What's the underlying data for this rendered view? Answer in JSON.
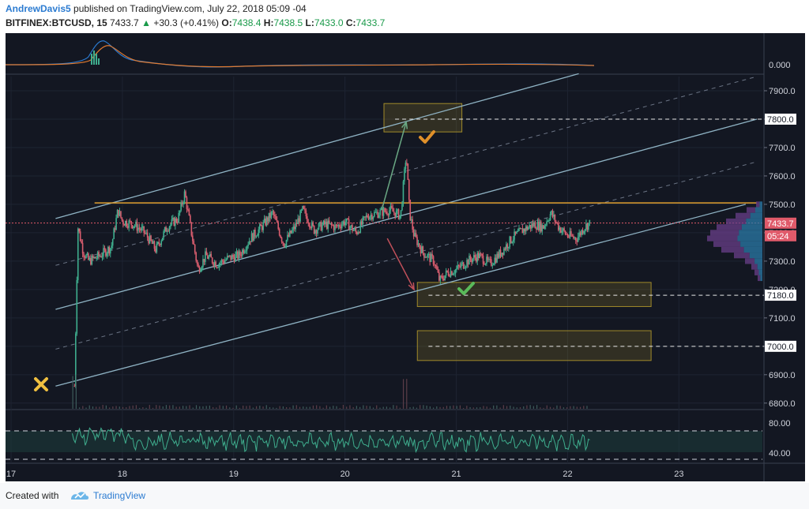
{
  "header": {
    "author": "AndrewDavis5",
    "published": " published on TradingView.com, July 22, 2018 05:09 -04",
    "symbol": "BITFINEX:BTCUSD, 15",
    "last": "7433.7",
    "up_arrow": "▲",
    "change": "+30.3 (+0.41%)",
    "o_label": "O:",
    "o_value": "7438.4",
    "h_label": "H:",
    "h_value": "7438.5",
    "l_label": "L:",
    "l_value": "7433.0",
    "c_label": "C:",
    "c_value": "7433.7"
  },
  "footer": {
    "created_with": "Created with",
    "brand": "TradingView"
  },
  "colors": {
    "background": "#131722",
    "channel": "#8fb3c4",
    "resistance": "#e0a030",
    "price_line": "#e05a6a",
    "candle_up": "#3fae8e",
    "candle_down": "#d95d6e",
    "zone": "#a08a2a",
    "rsi": "#3fae8e"
  },
  "chart_data": {
    "type": "candlestick",
    "x_ticks": [
      "17",
      "18",
      "19",
      "20",
      "21",
      "22",
      "23"
    ],
    "y_ticks": [
      "7900.0",
      "7800.0",
      "7700.0",
      "7600.0",
      "7500.0",
      "7400.0",
      "7300.0",
      "7200.0",
      "7100.0",
      "7000.0",
      "6900.0",
      "6800.0"
    ],
    "ylim": [
      6780,
      7950
    ],
    "xlim": [
      16.95,
      23.75
    ],
    "price_labels": {
      "current": "7433.7",
      "countdown": "05:24",
      "level_7800": "7800.0",
      "level_7180": "7180.0",
      "level_7000": "7000.0"
    },
    "macd_label": "0.000",
    "rsi_ticks": [
      "80.00",
      "40.00"
    ],
    "price_path": [
      [
        17.57,
        6860
      ],
      [
        17.6,
        7420
      ],
      [
        17.65,
        7330
      ],
      [
        17.7,
        7300
      ],
      [
        17.8,
        7320
      ],
      [
        17.9,
        7350
      ],
      [
        17.96,
        7480
      ],
      [
        18.0,
        7440
      ],
      [
        18.1,
        7430
      ],
      [
        18.2,
        7400
      ],
      [
        18.3,
        7340
      ],
      [
        18.4,
        7420
      ],
      [
        18.5,
        7450
      ],
      [
        18.56,
        7540
      ],
      [
        18.62,
        7400
      ],
      [
        18.68,
        7270
      ],
      [
        18.75,
        7320
      ],
      [
        18.85,
        7290
      ],
      [
        18.95,
        7310
      ],
      [
        19.05,
        7320
      ],
      [
        19.15,
        7380
      ],
      [
        19.25,
        7420
      ],
      [
        19.35,
        7470
      ],
      [
        19.45,
        7360
      ],
      [
        19.55,
        7420
      ],
      [
        19.62,
        7480
      ],
      [
        19.72,
        7410
      ],
      [
        19.82,
        7430
      ],
      [
        19.92,
        7420
      ],
      [
        20.0,
        7440
      ],
      [
        20.1,
        7400
      ],
      [
        20.2,
        7460
      ],
      [
        20.3,
        7470
      ],
      [
        20.4,
        7480
      ],
      [
        20.5,
        7460
      ],
      [
        20.55,
        7680
      ],
      [
        20.58,
        7470
      ],
      [
        20.62,
        7390
      ],
      [
        20.7,
        7330
      ],
      [
        20.8,
        7300
      ],
      [
        20.85,
        7230
      ],
      [
        20.92,
        7260
      ],
      [
        21.0,
        7270
      ],
      [
        21.1,
        7300
      ],
      [
        21.2,
        7320
      ],
      [
        21.3,
        7290
      ],
      [
        21.4,
        7330
      ],
      [
        21.5,
        7380
      ],
      [
        21.6,
        7410
      ],
      [
        21.7,
        7430
      ],
      [
        21.78,
        7420
      ],
      [
        21.85,
        7470
      ],
      [
        21.92,
        7420
      ],
      [
        22.0,
        7390
      ],
      [
        22.08,
        7380
      ],
      [
        22.15,
        7420
      ],
      [
        22.2,
        7434
      ]
    ],
    "channels": [
      {
        "name": "",
        "points": [
          [
            17.4,
            7450
          ],
          [
            22.1,
            7960
          ]
        ]
      },
      {
        "name": "",
        "points": [
          [
            17.4,
            7130
          ],
          [
            23.7,
            7800
          ]
        ]
      },
      {
        "name": "",
        "points": [
          [
            17.4,
            6860
          ],
          [
            23.6,
            7500
          ]
        ]
      }
    ],
    "dashed_channels": [
      {
        "points": [
          [
            17.4,
            7285
          ],
          [
            23.7,
            7950
          ]
        ]
      },
      {
        "points": [
          [
            17.4,
            6990
          ],
          [
            23.7,
            7650
          ]
        ]
      }
    ],
    "resistance": {
      "y": 7505,
      "x0": 17.75,
      "x1": 23.7
    },
    "current_price_line": 7434,
    "levels": [
      7800,
      7180,
      7000
    ],
    "zones": [
      {
        "x0": 20.35,
        "x1": 21.05,
        "y0": 7755,
        "y1": 7855
      },
      {
        "x0": 20.65,
        "x1": 22.75,
        "y0": 7140,
        "y1": 7225
      },
      {
        "x0": 20.65,
        "x1": 22.75,
        "y0": 6950,
        "y1": 7055
      }
    ],
    "arrows": [
      {
        "from": [
          20.33,
          7480
        ],
        "to": [
          20.55,
          7790
        ],
        "color": "#6aa884"
      },
      {
        "from": [
          20.38,
          7380
        ],
        "to": [
          20.62,
          7200
        ],
        "color": "#c0505a"
      }
    ]
  }
}
